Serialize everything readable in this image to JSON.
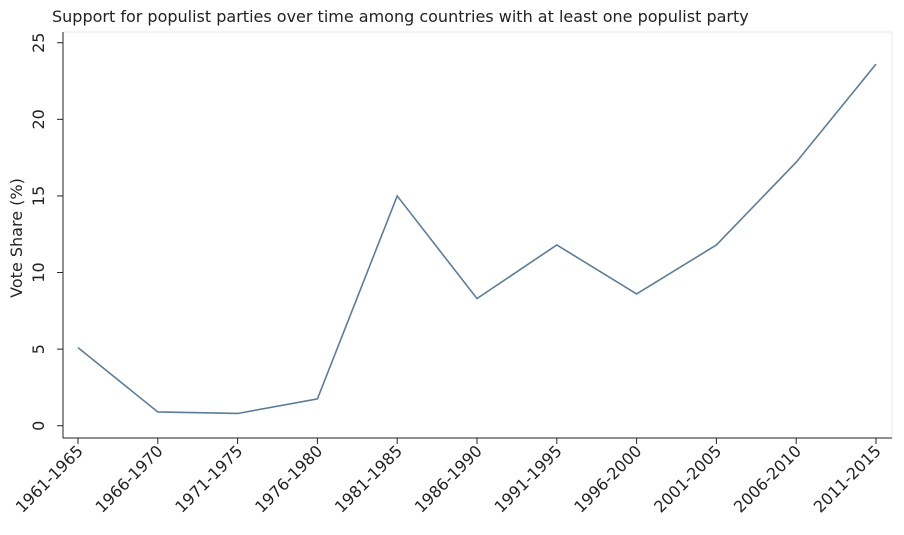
{
  "chart_data": {
    "type": "line",
    "title": "Support for populist parties over time among countries with at least one populist party",
    "y_label": "Vote Share (%)",
    "categories": [
      "1961-1965",
      "1966-1970",
      "1971-1975",
      "1976-1980",
      "1981-1985",
      "1986-1990",
      "1991-1995",
      "1996-2000",
      "2001-2005",
      "2006-2010",
      "2011-2015"
    ],
    "values": [
      5.1,
      0.9,
      0.8,
      1.75,
      15.0,
      8.3,
      11.8,
      8.6,
      11.8,
      17.2,
      23.6
    ],
    "color": "#5d7d97",
    "ylim": [
      -0.8,
      25.7
    ],
    "yticks": [
      0,
      5,
      10,
      15,
      20,
      25
    ],
    "grid": false
  }
}
